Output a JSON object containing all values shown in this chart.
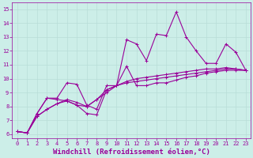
{
  "xlabel": "Windchill (Refroidissement éolien,°C)",
  "ylabel": "",
  "background_color": "#cceee8",
  "grid_color": "#b8ddd8",
  "line_color": "#990099",
  "x_ticks": [
    0,
    1,
    2,
    3,
    4,
    5,
    6,
    7,
    8,
    9,
    10,
    11,
    12,
    13,
    14,
    15,
    16,
    17,
    18,
    19,
    20,
    21,
    22,
    23
  ],
  "y_ticks": [
    6,
    7,
    8,
    9,
    10,
    11,
    12,
    13,
    14,
    15
  ],
  "ylim": [
    5.7,
    15.5
  ],
  "xlim": [
    -0.5,
    23.5
  ],
  "series": [
    [
      6.2,
      6.1,
      7.5,
      8.6,
      8.6,
      9.7,
      9.6,
      8.1,
      7.8,
      9.5,
      9.5,
      12.8,
      12.5,
      11.3,
      13.2,
      13.1,
      14.8,
      13.0,
      12.0,
      11.1,
      11.1,
      12.5,
      11.9,
      10.6
    ],
    [
      6.2,
      6.1,
      7.5,
      8.6,
      8.5,
      8.4,
      8.1,
      7.5,
      7.4,
      9.2,
      9.5,
      10.9,
      9.5,
      9.5,
      9.7,
      9.7,
      9.9,
      10.1,
      10.2,
      10.4,
      10.5,
      10.6,
      10.6,
      10.6
    ],
    [
      6.2,
      6.1,
      7.3,
      7.8,
      8.2,
      8.4,
      8.1,
      8.0,
      8.5,
      9.0,
      9.5,
      9.7,
      9.8,
      9.9,
      10.0,
      10.1,
      10.2,
      10.3,
      10.4,
      10.5,
      10.6,
      10.7,
      10.7,
      10.6
    ],
    [
      6.2,
      6.1,
      7.3,
      7.8,
      8.2,
      8.5,
      8.3,
      8.0,
      8.5,
      9.2,
      9.5,
      9.8,
      10.0,
      10.1,
      10.2,
      10.3,
      10.4,
      10.5,
      10.6,
      10.7,
      10.7,
      10.8,
      10.7,
      10.6
    ]
  ],
  "marker": "+",
  "markersize": 3,
  "linewidth": 0.8,
  "tick_fontsize": 5,
  "label_fontsize": 6.5
}
